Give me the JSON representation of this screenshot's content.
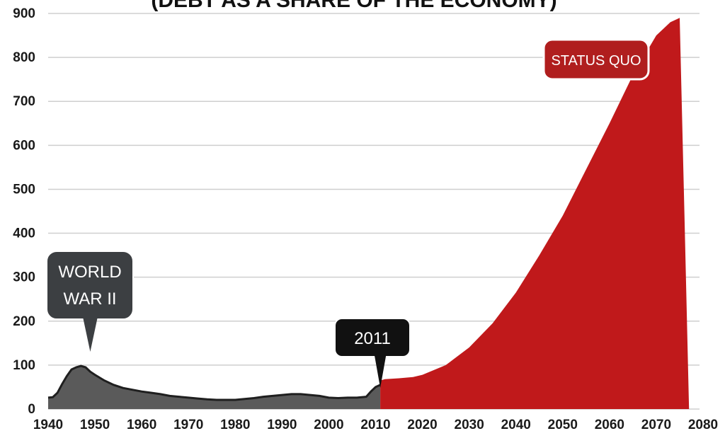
{
  "chart_data": {
    "type": "area",
    "title": "(DEBT AS A SHARE OF THE ECONOMY)",
    "xlabel": "",
    "ylabel": "",
    "xlim": [
      1940,
      2080
    ],
    "ylim": [
      0,
      900
    ],
    "x_ticks": [
      1940,
      1950,
      1960,
      1970,
      1980,
      1990,
      2000,
      2010,
      2020,
      2030,
      2040,
      2050,
      2060,
      2070,
      2080
    ],
    "y_ticks": [
      0,
      100,
      200,
      300,
      400,
      500,
      600,
      700,
      800,
      900
    ],
    "grid": true,
    "colors": {
      "historical": "#5a5a5a",
      "projection": "#c0191b",
      "grid": "#cfcfcf",
      "callout_dark": "#3c3f42",
      "callout_black": "#111111",
      "callout_red": "#b01e1e"
    },
    "series": [
      {
        "x": [
          1940,
          1941,
          1942,
          1943,
          1944,
          1945,
          1946,
          1947,
          1948,
          1949,
          1950,
          1952,
          1954,
          1956,
          1958,
          1960,
          1962,
          1964,
          1966,
          1968,
          1970,
          1972,
          1974,
          1976,
          1978,
          1980,
          1982,
          1984,
          1986,
          1988,
          1990,
          1992,
          1994,
          1996,
          1998,
          2000,
          2002,
          2004,
          2006,
          2008,
          2009,
          2010,
          2011
        ],
        "y": [
          26,
          27,
          37,
          57,
          75,
          90,
          95,
          98,
          95,
          85,
          78,
          65,
          55,
          48,
          44,
          40,
          37,
          34,
          30,
          28,
          26,
          24,
          22,
          21,
          21,
          21,
          23,
          25,
          28,
          30,
          32,
          34,
          34,
          32,
          30,
          26,
          25,
          26,
          26,
          28,
          40,
          50,
          55
        ]
      },
      {
        "x": [
          2011,
          2012,
          2015,
          2018,
          2020,
          2025,
          2030,
          2035,
          2040,
          2045,
          2050,
          2055,
          2060,
          2065,
          2070,
          2073,
          2075,
          2076,
          2077
        ],
        "y": [
          65,
          68,
          70,
          73,
          78,
          100,
          140,
          195,
          265,
          350,
          440,
          545,
          650,
          760,
          850,
          880,
          890,
          450,
          0
        ]
      }
    ],
    "annotations": [
      {
        "x": 1949,
        "line1": "WORLD",
        "line2": "WAR II"
      },
      {
        "x": 2011,
        "label": "2011"
      },
      {
        "x": 2071,
        "label": "STATUS QUO"
      }
    ]
  }
}
